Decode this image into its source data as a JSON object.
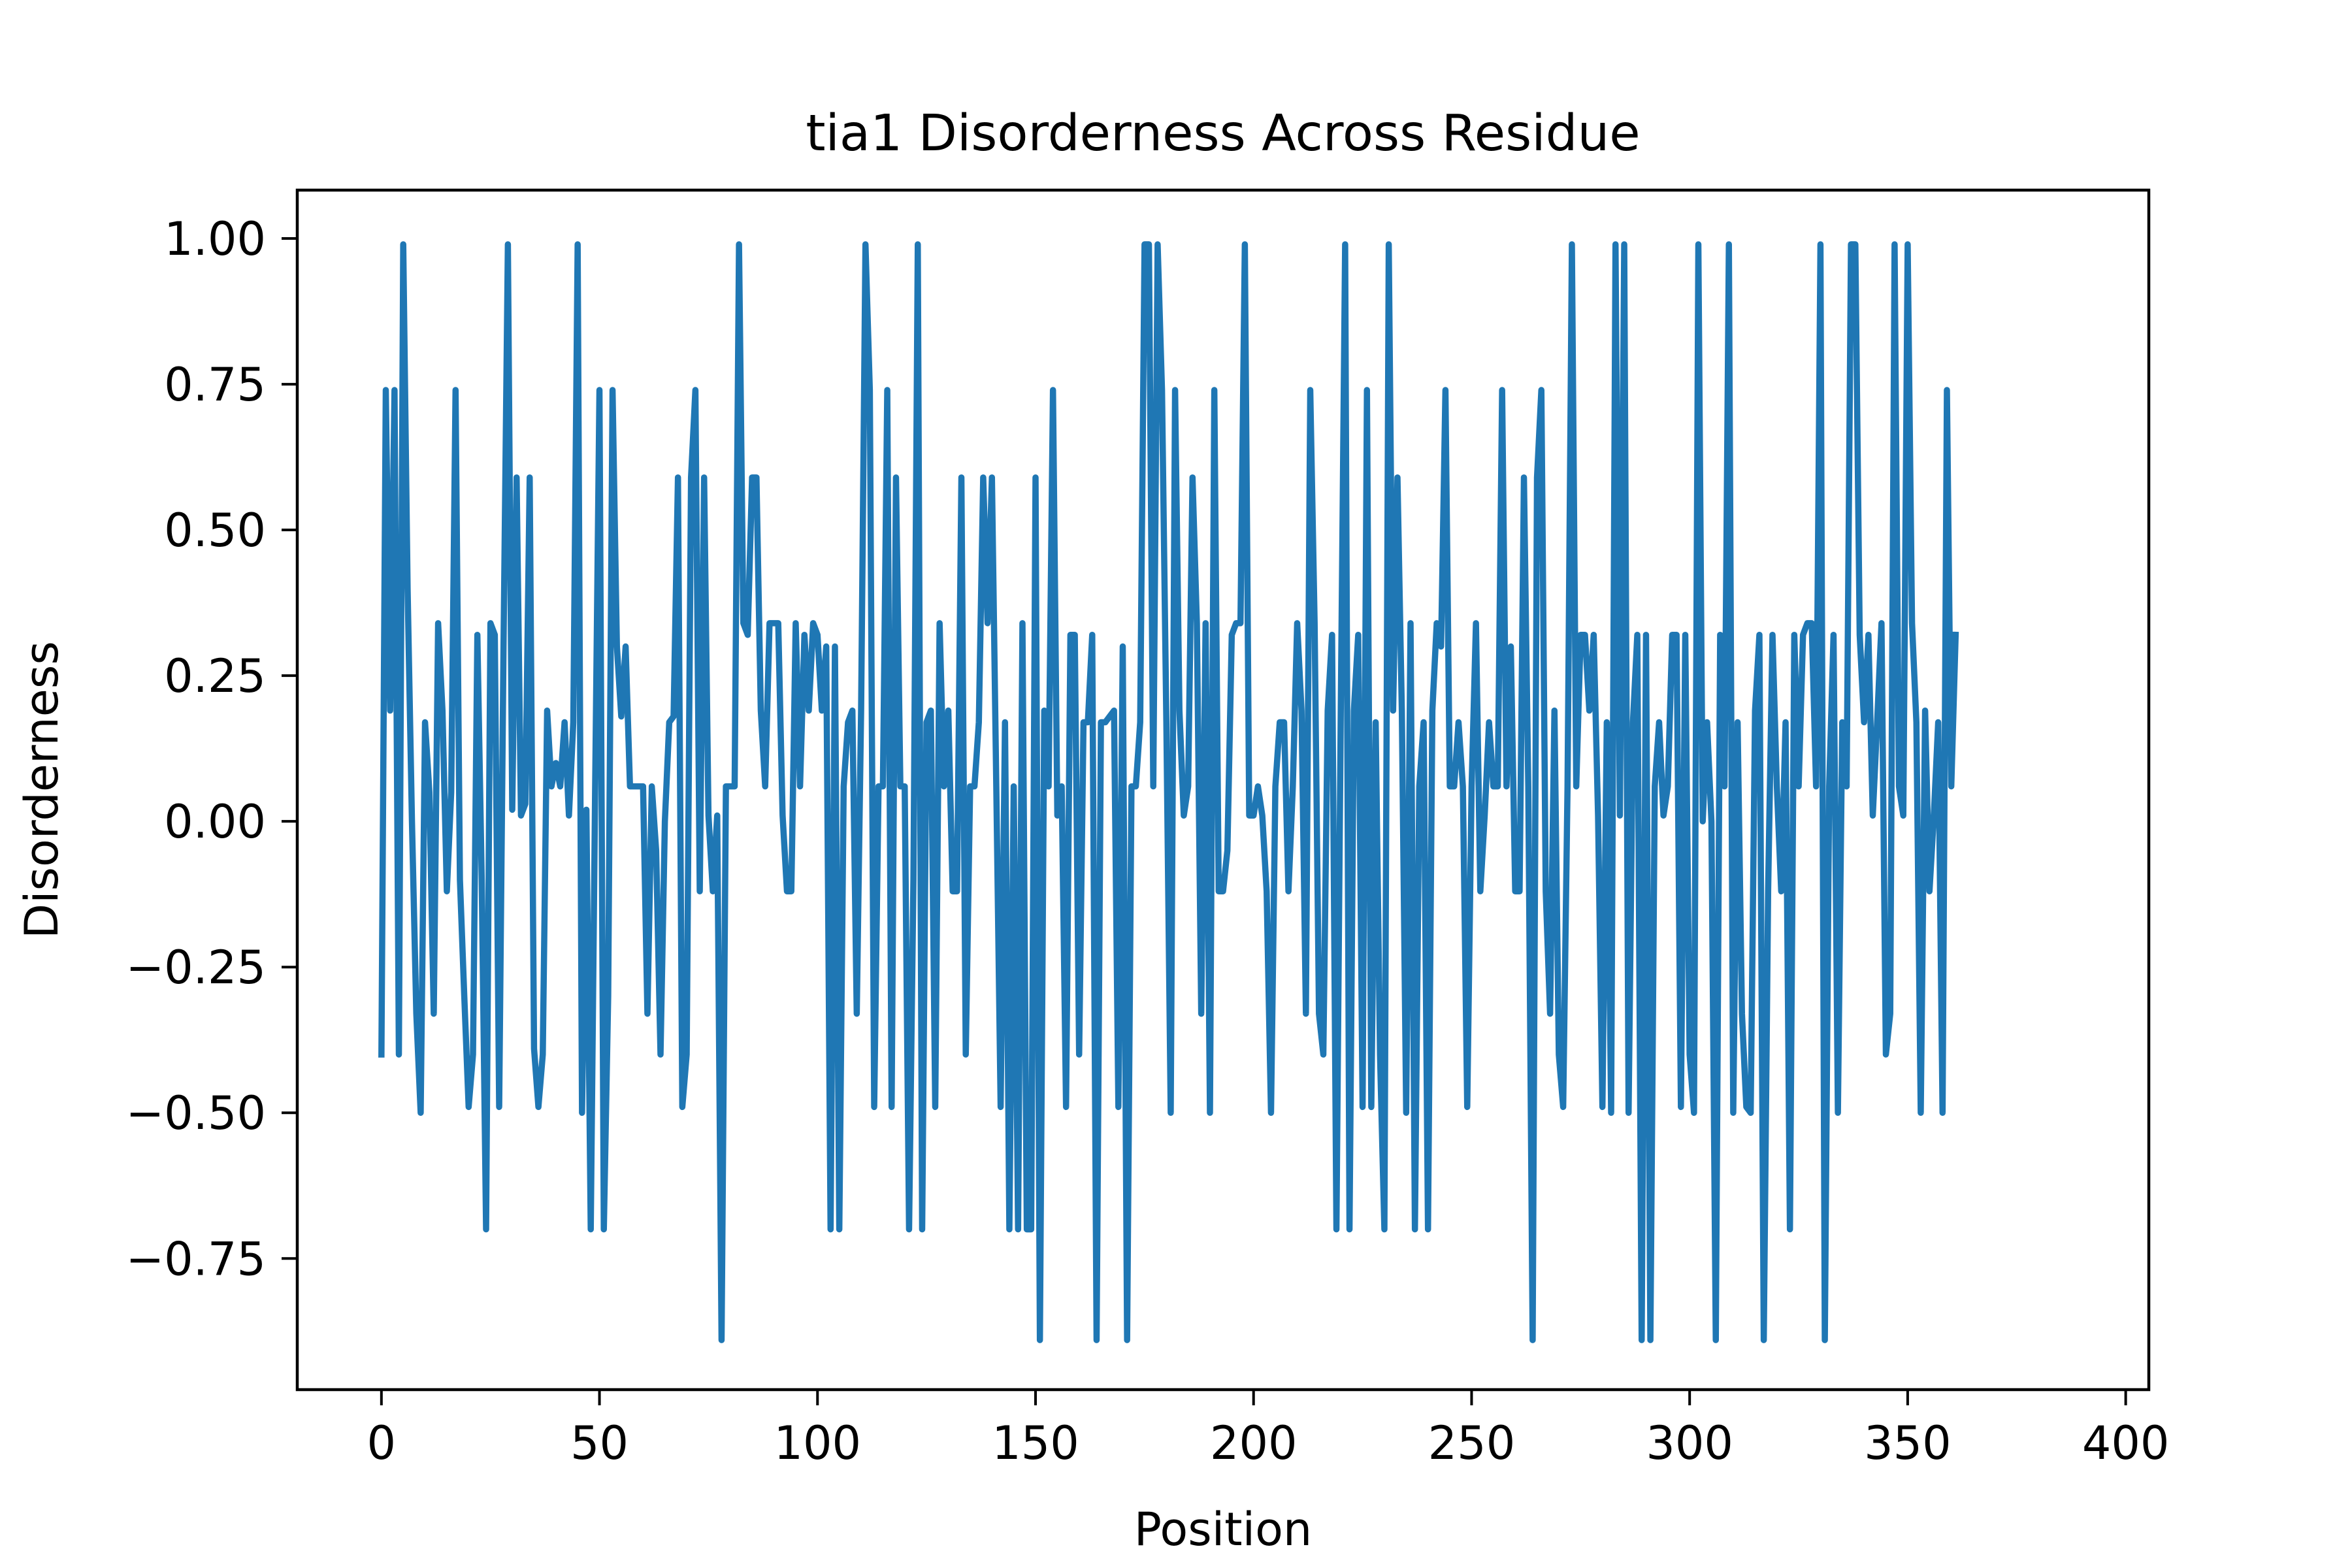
{
  "chart_data": {
    "type": "line",
    "title": "tia1 Disorderness Across Residue",
    "xlabel": "Position",
    "ylabel": "Disorderness",
    "xlim": [
      -19.3,
      405.3
    ],
    "ylim": [
      -0.975,
      1.083
    ],
    "xticks": [
      0,
      50,
      100,
      150,
      200,
      250,
      300,
      350,
      400
    ],
    "xtick_labels": [
      "0",
      "50",
      "100",
      "150",
      "200",
      "250",
      "300",
      "350",
      "400"
    ],
    "yticks": [
      -0.75,
      -0.5,
      -0.25,
      0.0,
      0.25,
      0.5,
      0.75,
      1.0
    ],
    "ytick_labels": [
      "−0.75",
      "−0.50",
      "−0.25",
      "0.00",
      "0.25",
      "0.50",
      "0.75",
      "1.00"
    ],
    "grid": false,
    "series": [
      {
        "color": "#1f77b4",
        "values": [
          -0.4,
          0.74,
          0.19,
          0.74,
          -0.4,
          0.99,
          0.4,
          0.0,
          -0.33,
          -0.5,
          0.17,
          0.05,
          -0.33,
          0.34,
          0.19,
          -0.12,
          0.05,
          0.74,
          -0.1,
          -0.3,
          -0.49,
          -0.4,
          0.32,
          -0.1,
          -0.7,
          0.34,
          0.32,
          -0.49,
          0.3,
          0.99,
          0.02,
          0.59,
          0.01,
          0.03,
          0.59,
          -0.39,
          -0.49,
          -0.4,
          0.19,
          0.06,
          0.1,
          0.06,
          0.17,
          0.01,
          0.17,
          0.99,
          -0.5,
          0.02,
          -0.7,
          0.05,
          0.74,
          -0.7,
          -0.3,
          0.74,
          0.3,
          0.18,
          0.3,
          0.06,
          0.06,
          0.06,
          0.06,
          -0.33,
          0.06,
          -0.05,
          -0.4,
          0.0,
          0.17,
          0.18,
          0.59,
          -0.49,
          -0.4,
          0.59,
          0.74,
          -0.12,
          0.59,
          0.01,
          -0.12,
          0.01,
          -0.89,
          0.06,
          0.06,
          0.06,
          0.99,
          0.34,
          0.32,
          0.59,
          0.59,
          0.19,
          0.06,
          0.34,
          0.34,
          0.34,
          0.01,
          -0.12,
          -0.12,
          0.34,
          0.06,
          0.32,
          0.19,
          0.34,
          0.32,
          0.19,
          0.3,
          -0.7,
          0.3,
          -0.7,
          0.06,
          0.17,
          0.19,
          -0.33,
          0.19,
          0.99,
          0.74,
          -0.49,
          0.06,
          0.06,
          0.74,
          -0.49,
          0.59,
          0.06,
          0.06,
          -0.7,
          -0.1,
          0.99,
          -0.7,
          0.17,
          0.19,
          -0.49,
          0.34,
          0.06,
          0.19,
          -0.12,
          -0.12,
          0.59,
          -0.4,
          0.06,
          0.06,
          0.17,
          0.59,
          0.34,
          0.59,
          0.06,
          -0.49,
          0.17,
          -0.7,
          0.06,
          -0.7,
          0.34,
          -0.7,
          -0.7,
          0.59,
          -0.89,
          0.19,
          0.06,
          0.74,
          0.01,
          0.06,
          -0.49,
          0.32,
          0.32,
          -0.4,
          0.17,
          0.17,
          0.32,
          -0.89,
          0.17,
          0.17,
          0.18,
          0.19,
          -0.49,
          0.3,
          -0.89,
          0.06,
          0.06,
          0.17,
          0.99,
          0.99,
          0.06,
          0.99,
          0.74,
          0.17,
          -0.5,
          0.74,
          0.19,
          0.01,
          0.06,
          0.59,
          0.34,
          -0.33,
          0.34,
          -0.5,
          0.74,
          -0.12,
          -0.12,
          -0.05,
          0.32,
          0.34,
          0.34,
          0.99,
          0.01,
          0.01,
          0.06,
          0.01,
          -0.12,
          -0.5,
          0.06,
          0.17,
          0.17,
          -0.12,
          0.06,
          0.34,
          0.19,
          -0.33,
          0.74,
          0.34,
          -0.33,
          -0.4,
          0.19,
          0.32,
          -0.7,
          0.19,
          0.99,
          -0.7,
          0.19,
          0.32,
          -0.49,
          0.74,
          -0.49,
          0.17,
          -0.4,
          -0.7,
          0.99,
          0.19,
          0.59,
          0.19,
          -0.5,
          0.34,
          -0.7,
          0.06,
          0.17,
          -0.7,
          0.19,
          0.34,
          0.3,
          0.74,
          0.06,
          0.06,
          0.17,
          0.06,
          -0.49,
          0.06,
          0.34,
          -0.12,
          0.01,
          0.17,
          0.06,
          0.06,
          0.74,
          0.06,
          0.3,
          -0.12,
          -0.12,
          0.59,
          0.06,
          -0.89,
          0.59,
          0.74,
          -0.12,
          -0.33,
          0.19,
          -0.4,
          -0.49,
          0.06,
          0.99,
          0.06,
          0.32,
          0.32,
          0.19,
          0.32,
          0.01,
          -0.49,
          0.17,
          -0.5,
          0.99,
          0.01,
          0.99,
          -0.5,
          0.17,
          0.32,
          -0.89,
          0.32,
          -0.89,
          0.06,
          0.17,
          0.01,
          0.06,
          0.32,
          0.32,
          -0.49,
          0.32,
          -0.4,
          -0.5,
          0.99,
          0.0,
          0.17,
          0.0,
          -0.89,
          0.32,
          0.06,
          0.99,
          -0.5,
          0.17,
          -0.33,
          -0.49,
          -0.5,
          0.19,
          0.32,
          -0.89,
          -0.12,
          0.32,
          0.06,
          -0.12,
          0.17,
          -0.7,
          0.32,
          0.06,
          0.32,
          0.34,
          0.34,
          0.06,
          0.99,
          -0.89,
          0.06,
          0.32,
          -0.5,
          0.17,
          0.06,
          0.99,
          0.99,
          0.32,
          0.17,
          0.32,
          0.01,
          0.17,
          0.34,
          -0.4,
          -0.33,
          0.99,
          0.06,
          0.01,
          0.99,
          0.34,
          0.17,
          -0.5,
          0.19,
          -0.12,
          0.01,
          0.17,
          -0.5,
          0.74,
          0.06,
          0.32
        ]
      }
    ]
  }
}
